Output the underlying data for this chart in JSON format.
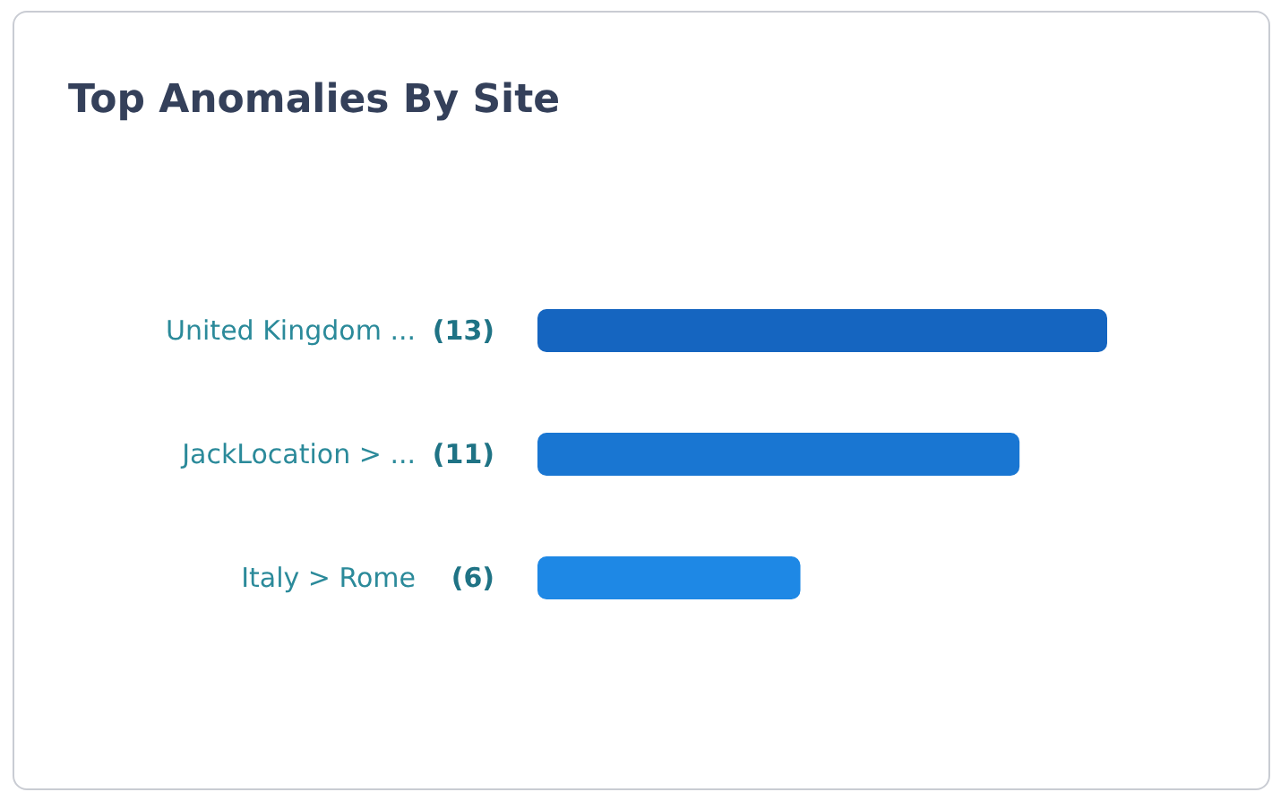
{
  "chart_data": {
    "type": "bar",
    "orientation": "horizontal",
    "title": "Top Anomalies By Site",
    "categories": [
      "United Kingdom ...",
      "JackLocation > ...",
      "Italy > Rome"
    ],
    "values": [
      13,
      11,
      6
    ],
    "colors": [
      "#1565c0",
      "#1976d2",
      "#1e88e5"
    ],
    "value_labels": [
      "(13)",
      "(11)",
      "(6)"
    ],
    "grid": false
  }
}
